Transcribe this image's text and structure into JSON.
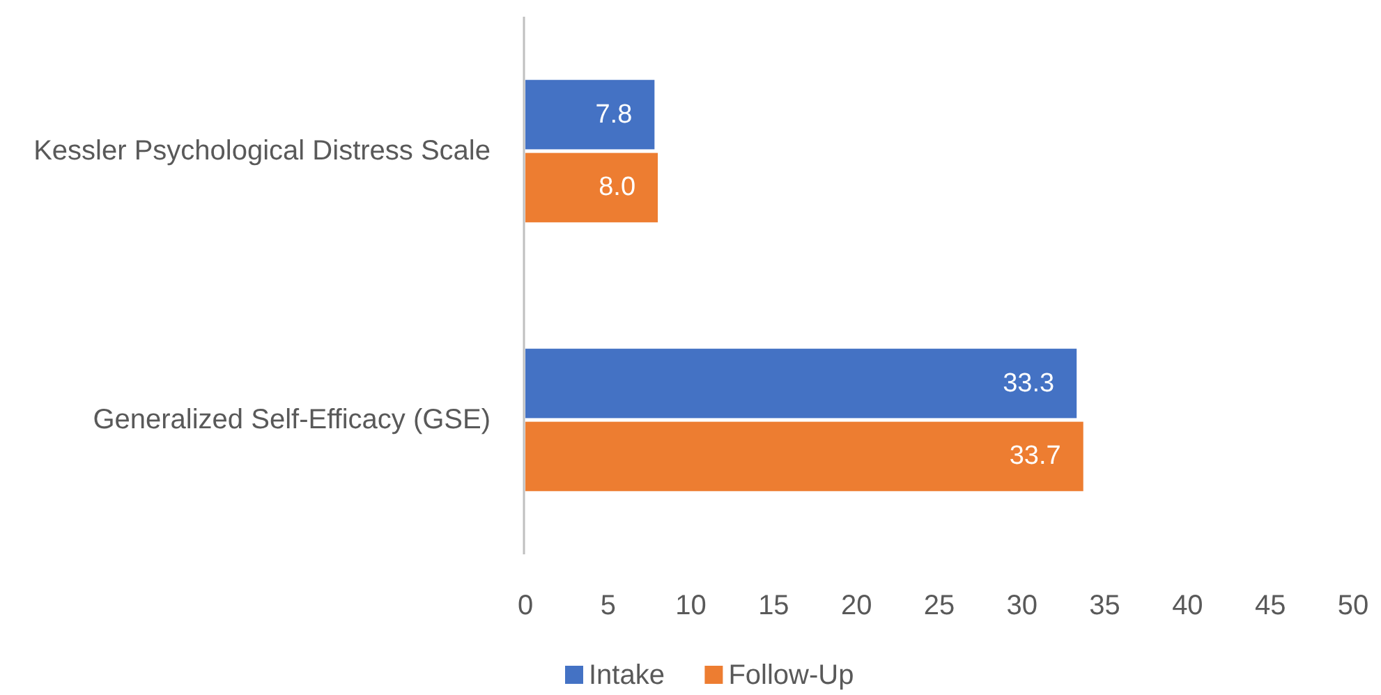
{
  "chart_data": {
    "type": "bar",
    "orientation": "horizontal",
    "categories": [
      "Kessler Psychological Distress Scale",
      "Generalized Self-Efficacy (GSE)"
    ],
    "series": [
      {
        "name": "Intake",
        "color": "#4472c4",
        "values": [
          7.8,
          33.3
        ],
        "value_labels": [
          "7.8",
          "33.3"
        ]
      },
      {
        "name": "Follow-Up",
        "color": "#ed7d31",
        "values": [
          8.0,
          33.7
        ],
        "value_labels": [
          "8.0",
          "33.7"
        ]
      }
    ],
    "xlim": [
      0,
      50
    ],
    "xticks": [
      0,
      5,
      10,
      15,
      20,
      25,
      30,
      35,
      40,
      45,
      50
    ],
    "grid": false,
    "legend": "bottom"
  }
}
